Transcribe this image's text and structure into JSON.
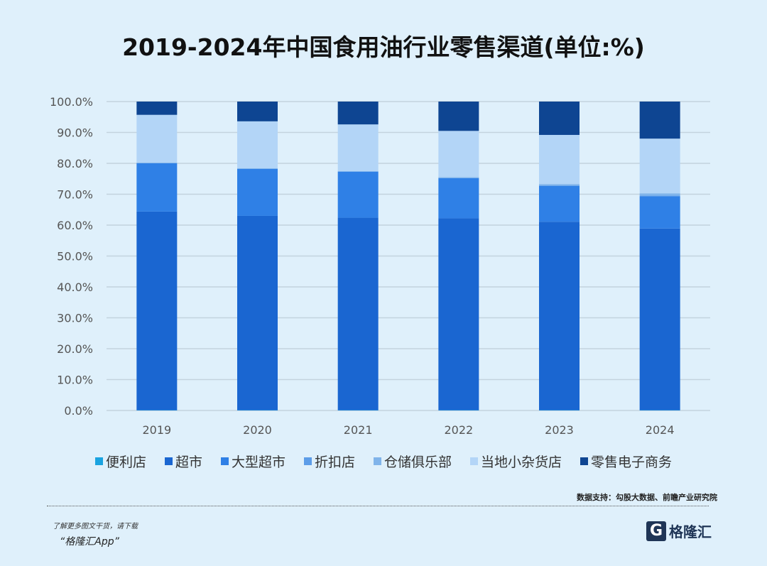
{
  "chart_data": {
    "type": "bar",
    "stacked": true,
    "title": "2019-2024年中国食用油行业零售渠道(单位:%)",
    "categories": [
      "2019",
      "2020",
      "2021",
      "2022",
      "2023",
      "2024"
    ],
    "ylim": [
      0,
      100
    ],
    "yticks": [
      "0.0%",
      "10.0%",
      "20.0%",
      "30.0%",
      "40.0%",
      "50.0%",
      "60.0%",
      "70.0%",
      "80.0%",
      "90.0%",
      "100.0%"
    ],
    "grid": true,
    "legend_position": "bottom",
    "series": [
      {
        "name": "便利店",
        "color": "#1aa3e0",
        "values": [
          0.1,
          0.1,
          0.1,
          0.1,
          0.1,
          0.1
        ]
      },
      {
        "name": "超市",
        "color": "#1a66d1",
        "values": [
          64.3,
          62.9,
          62.3,
          62.1,
          61.0,
          58.8
        ]
      },
      {
        "name": "大型超市",
        "color": "#2f80e6",
        "values": [
          15.6,
          15.2,
          14.9,
          13.0,
          11.6,
          10.4
        ]
      },
      {
        "name": "折扣店",
        "color": "#5c9de8",
        "values": [
          0.1,
          0.1,
          0.1,
          0.1,
          0.2,
          0.3
        ]
      },
      {
        "name": "仓储俱乐部",
        "color": "#80b4ea",
        "values": [
          0.1,
          0.1,
          0.1,
          0.2,
          0.4,
          0.7
        ]
      },
      {
        "name": "当地小杂货店",
        "color": "#b3d5f7",
        "values": [
          15.5,
          15.2,
          15.1,
          15.0,
          15.9,
          17.7
        ]
      },
      {
        "name": "零售电子商务",
        "color": "#0e4592",
        "values": [
          4.3,
          6.4,
          7.4,
          9.5,
          10.8,
          12.0
        ]
      }
    ]
  },
  "footer": {
    "source": "数据支持：勾股大数据、前瞻产业研究院",
    "promo_line1": "了解更多图文干货，请下载",
    "promo_line2": "“格隆汇App”",
    "logo_text": "格隆汇",
    "logo_mark": "G"
  }
}
